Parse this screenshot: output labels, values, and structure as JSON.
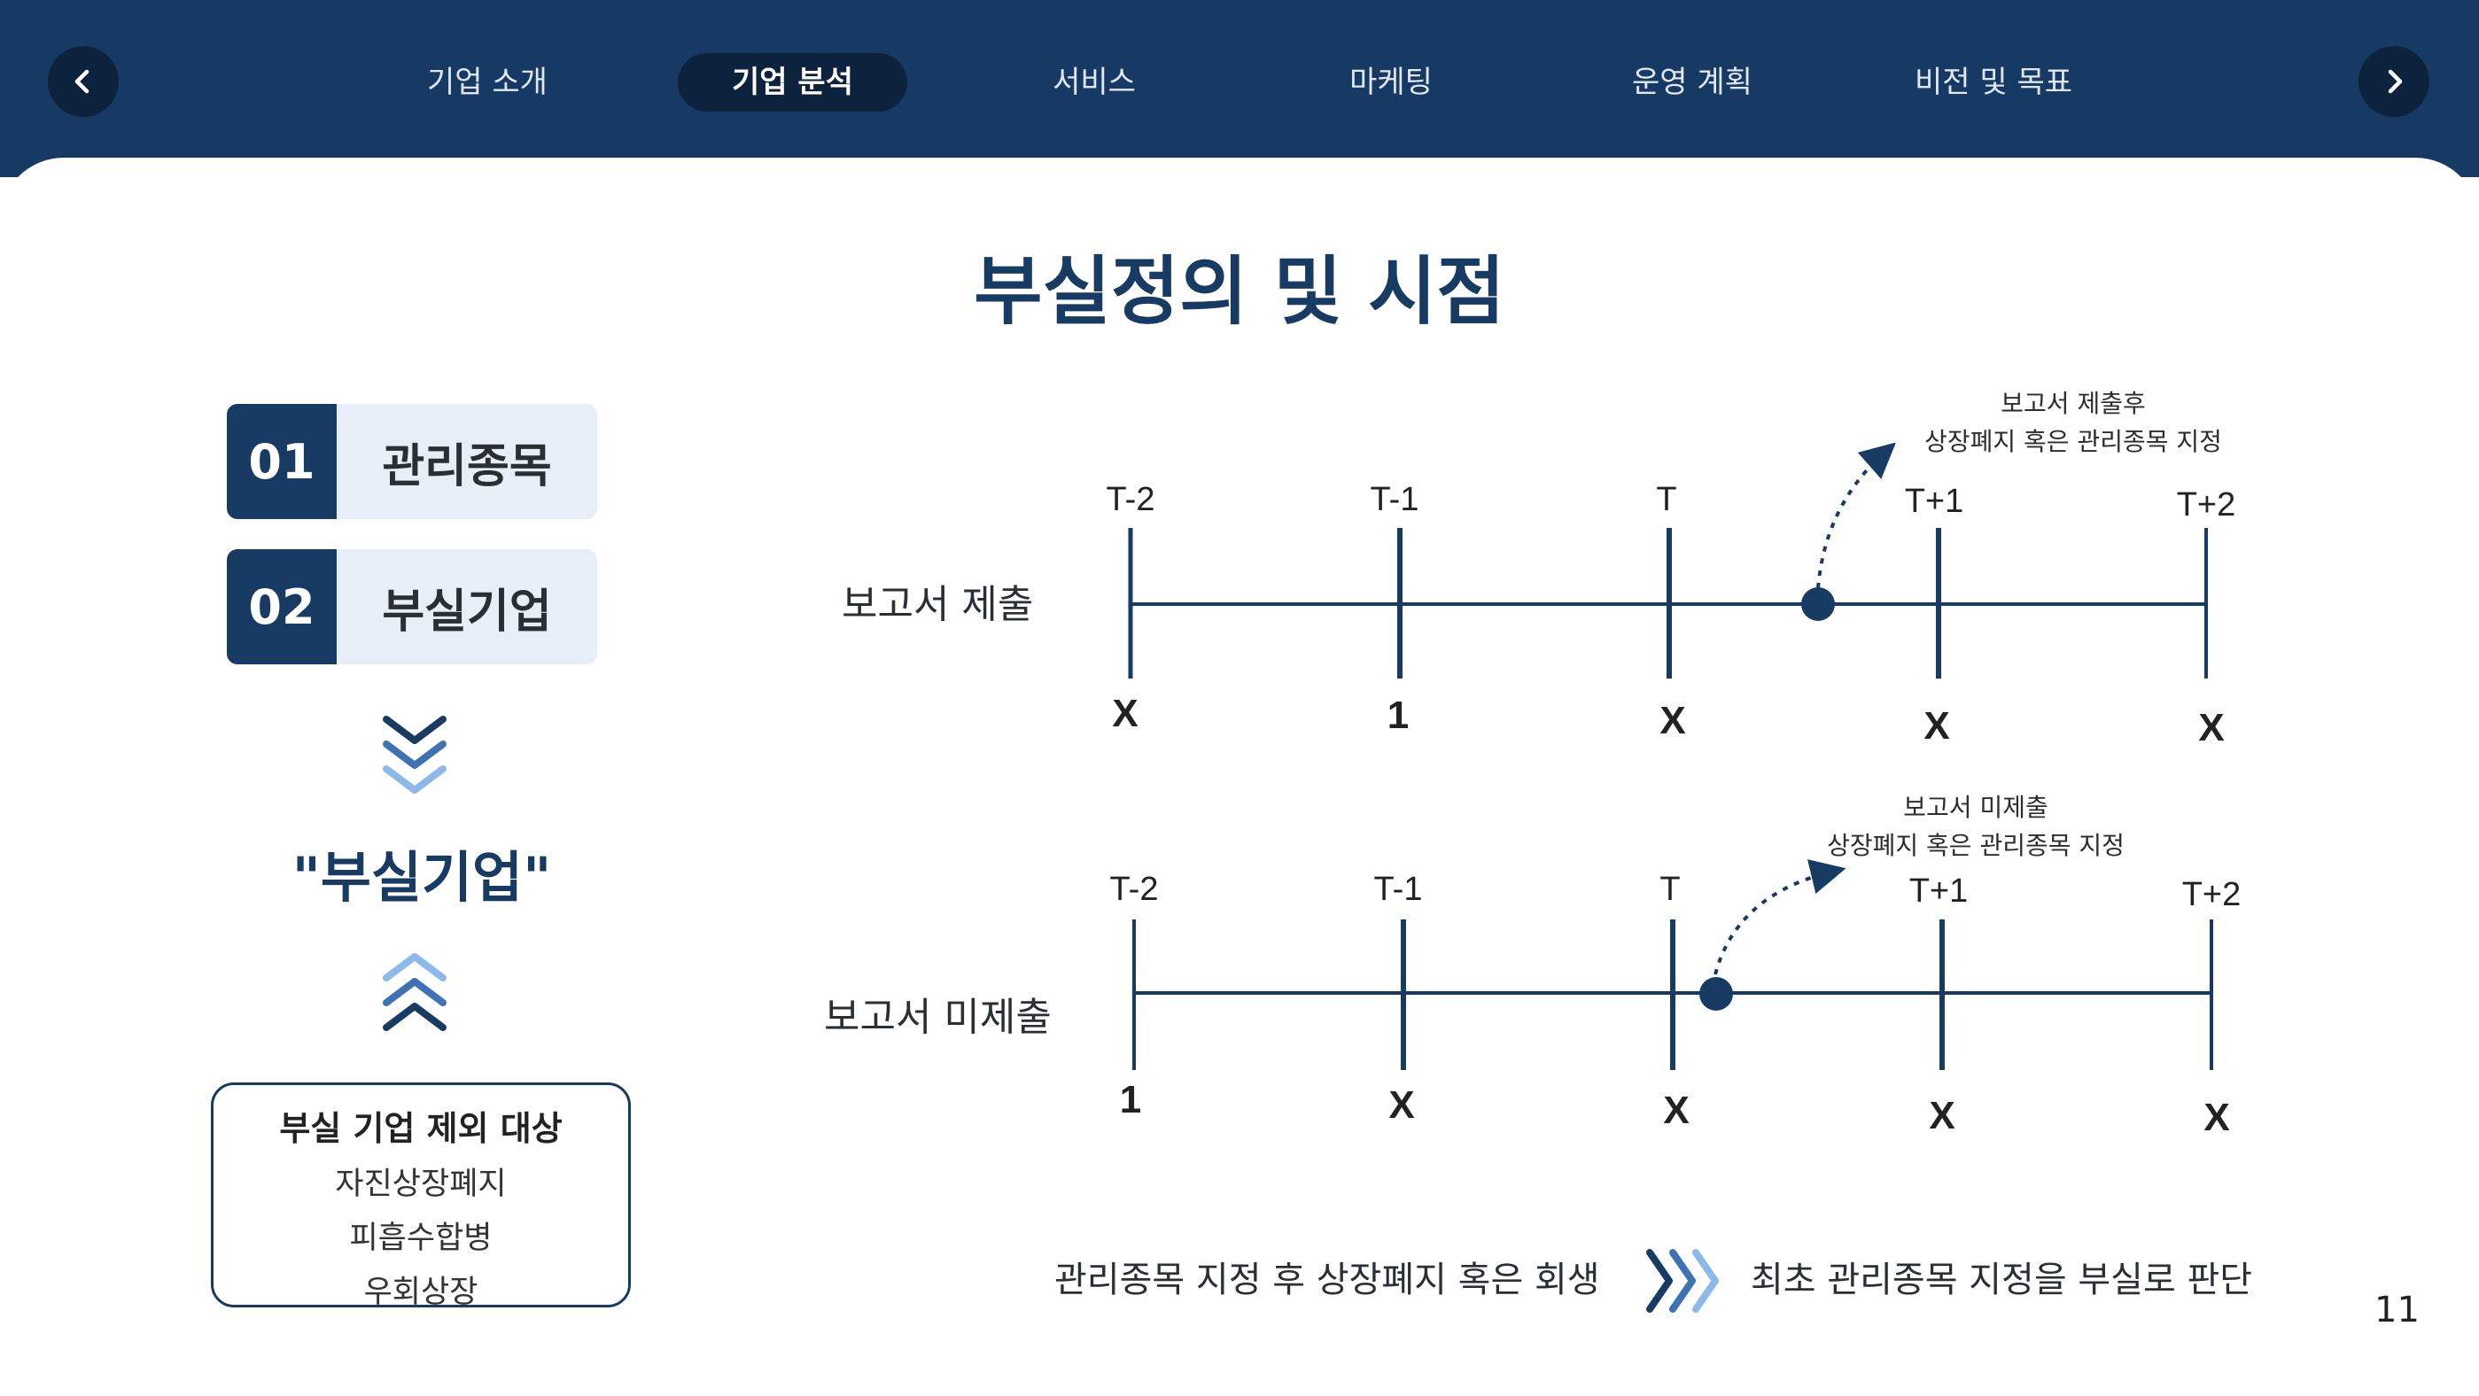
{
  "nav": {
    "tabs": [
      {
        "label": "기업 소개",
        "active": false
      },
      {
        "label": "기업 분석",
        "active": true
      },
      {
        "label": "서비스",
        "active": false
      },
      {
        "label": "마케팅",
        "active": false
      },
      {
        "label": "운영 계획",
        "active": false
      },
      {
        "label": "비전 및 목표",
        "active": false
      }
    ],
    "prev_icon": "chevron-left-icon",
    "next_icon": "chevron-right-icon"
  },
  "title": "부실정의 및 시점",
  "left": {
    "badges": [
      {
        "num": "01",
        "label": "관리종목"
      },
      {
        "num": "02",
        "label": "부실기업"
      }
    ],
    "quote": "\"부실기업\"",
    "exclusion": {
      "heading": "부실 기업 제외 대상",
      "items": [
        "자진상장폐지",
        "피흡수합병",
        "우회상장"
      ]
    }
  },
  "timelines": [
    {
      "label": "보고서 제출",
      "ticks": [
        "T-2",
        "T-1",
        "T",
        "T+1",
        "T+2"
      ],
      "marks": [
        "X",
        "1",
        "X",
        "X",
        "X"
      ],
      "note": [
        "보고서 제출후",
        "상장폐지 혹은 관리종목 지정"
      ],
      "event_between": "T ~ T+1"
    },
    {
      "label": "보고서 미제출",
      "ticks": [
        "T-2",
        "T-1",
        "T",
        "T+1",
        "T+2"
      ],
      "marks": [
        "1",
        "X",
        "X",
        "X",
        "X"
      ],
      "note": [
        "보고서 미제출",
        "상장폐지 혹은 관리종목 지정"
      ],
      "event_between": "T ~ T+1"
    }
  ],
  "conclusion": {
    "left": "관리종목 지정 후 상장폐지 혹은 회생",
    "right": "최초 관리종목 지정을 부실로 판단"
  },
  "page_number": "11",
  "colors": {
    "navy": "#173b63",
    "dark": "#0c223d",
    "light": "#e7eef7",
    "accent": "#6ea2de"
  }
}
